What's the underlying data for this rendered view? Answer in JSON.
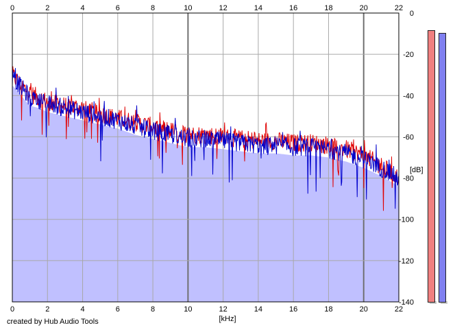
{
  "chart_data": {
    "type": "area",
    "xlabel": "[kHz]",
    "ylabel": "[dB]",
    "xlim": [
      0,
      22
    ],
    "ylim": [
      -140,
      0
    ],
    "x_ticks": [
      "0",
      "2",
      "4",
      "6",
      "8",
      "10",
      "12",
      "14",
      "16",
      "18",
      "20",
      "22"
    ],
    "y_ticks": [
      "0",
      "-20",
      "-40",
      "-60",
      "-80",
      "-100",
      "-120",
      "-140"
    ],
    "grid": true,
    "fill_color": "#c0c0ff",
    "series": [
      {
        "color": "#e00000",
        "x": [
          0,
          0.5,
          1,
          1.5,
          2,
          3,
          4,
          5,
          6,
          7,
          8,
          9,
          10,
          11,
          12,
          13,
          14,
          15,
          16,
          17,
          18,
          19,
          20,
          21,
          22
        ],
        "y": [
          -30,
          -35,
          -39,
          -41,
          -43,
          -45,
          -46,
          -49,
          -51,
          -53,
          -55,
          -57,
          -59,
          -59,
          -60,
          -61,
          -62,
          -62,
          -63,
          -63,
          -64,
          -66,
          -69,
          -74,
          -80
        ]
      },
      {
        "color": "#0000cc",
        "x": [
          0,
          0.5,
          1,
          1.5,
          2,
          3,
          4,
          5,
          6,
          7,
          8,
          9,
          10,
          11,
          12,
          13,
          14,
          15,
          16,
          17,
          18,
          19,
          20,
          21,
          22
        ],
        "y": [
          -31,
          -36,
          -41,
          -42,
          -44,
          -46,
          -48,
          -50,
          -52,
          -55,
          -57,
          -59,
          -61,
          -61,
          -62,
          -63,
          -64,
          -64,
          -65,
          -65,
          -66,
          -68,
          -71,
          -75,
          -80
        ]
      }
    ]
  },
  "credit_text": "created by Hub Audio Tools",
  "level_meter": {
    "left_color": "#f08080",
    "right_color": "#8080f0"
  }
}
